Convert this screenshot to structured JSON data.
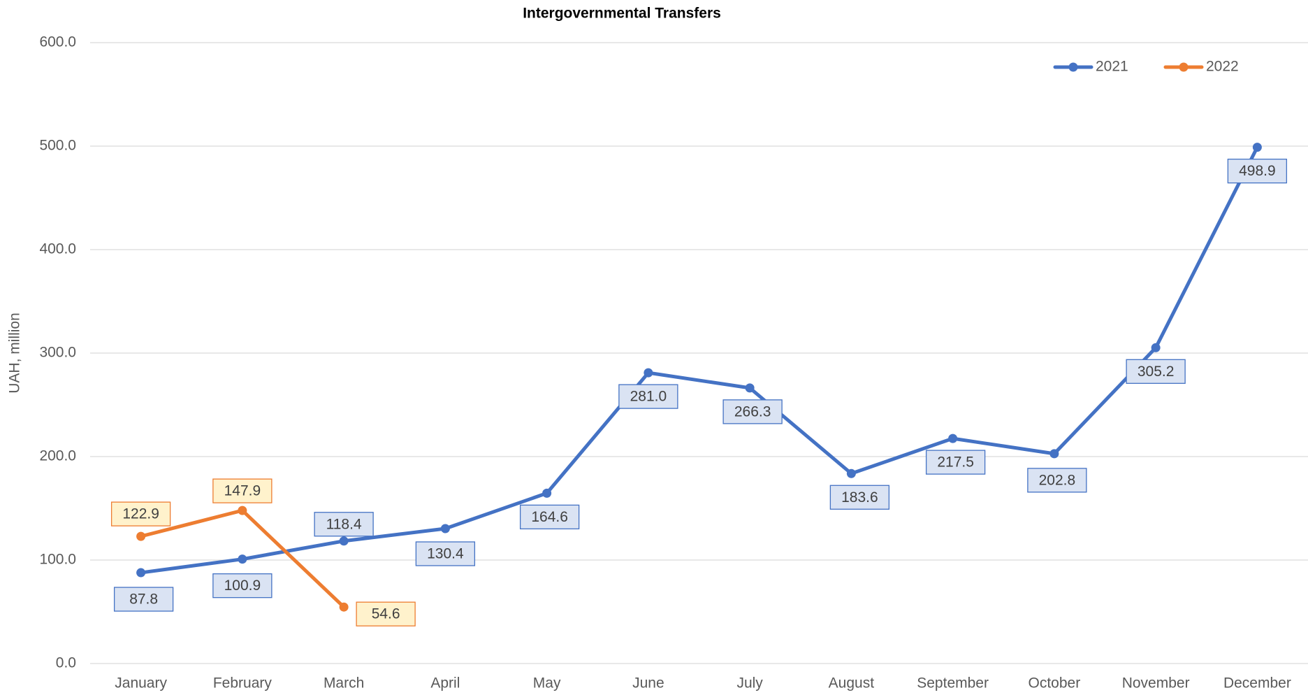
{
  "chart_data": {
    "type": "line",
    "title": "Intergovernmental Transfers",
    "y_label": "UAH, million",
    "categories": [
      "January",
      "February",
      "March",
      "April",
      "May",
      "June",
      "July",
      "August",
      "September",
      "October",
      "November",
      "December"
    ],
    "series": [
      {
        "name": "2021",
        "color": "#4472c4",
        "values": [
          87.8,
          100.9,
          118.4,
          130.4,
          164.6,
          281.0,
          266.3,
          183.6,
          217.5,
          202.8,
          305.2,
          498.9
        ],
        "value_labels": [
          "87.8",
          "100.9",
          "118.4",
          "130.4",
          "164.6",
          "281.0",
          "266.3",
          "183.6",
          "217.5",
          "202.8",
          "305.2",
          "498.9"
        ]
      },
      {
        "name": "2022",
        "color": "#ed7d31",
        "values": [
          122.9,
          147.9,
          54.6,
          null,
          null,
          null,
          null,
          null,
          null,
          null,
          null,
          null
        ],
        "value_labels": [
          "122.9",
          "147.9",
          "54.6",
          null,
          null,
          null,
          null,
          null,
          null,
          null,
          null,
          null
        ]
      }
    ],
    "ylim": [
      0,
      600
    ],
    "yticks": [
      {
        "value": 0,
        "label": "0.0"
      },
      {
        "value": 100,
        "label": "100.0"
      },
      {
        "value": 200,
        "label": "200.0"
      },
      {
        "value": 300,
        "label": "300.0"
      },
      {
        "value": 400,
        "label": "400.0"
      },
      {
        "value": 500,
        "label": "500.0"
      },
      {
        "value": 600,
        "label": "600.0"
      }
    ],
    "grid": true,
    "legend": "top-right"
  }
}
